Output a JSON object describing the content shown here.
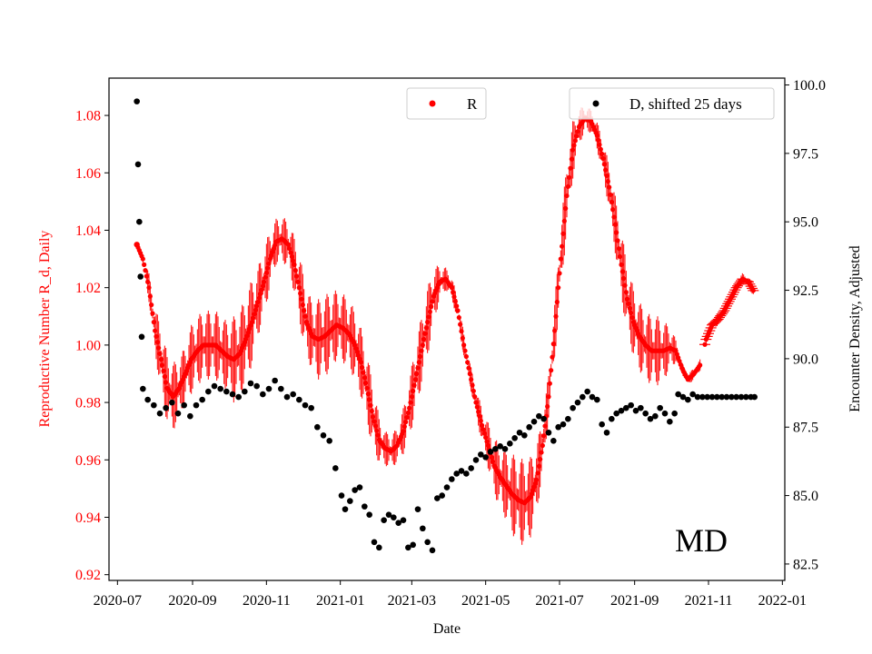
{
  "chart_data": {
    "type": "scatter",
    "title": "",
    "annotation": "MD",
    "xlabel": "Date",
    "ylabel_left": "Reproductive Number R_d, Daily",
    "ylabel_right": "Encounter Density, Adjusted",
    "x_ticks": [
      "2020-07",
      "2020-09",
      "2020-11",
      "2021-01",
      "2021-03",
      "2021-05",
      "2021-07",
      "2021-09",
      "2021-11",
      "2022-01"
    ],
    "x_range": [
      "2020-06-24",
      "2022-01-03"
    ],
    "ylim_left": [
      0.918,
      1.093
    ],
    "ylim_right": [
      81.9,
      100.25
    ],
    "y_ticks_left": [
      "0.92",
      "0.94",
      "0.96",
      "0.98",
      "1.00",
      "1.02",
      "1.04",
      "1.06",
      "1.08"
    ],
    "y_ticks_right": [
      "82.5",
      "85.0",
      "87.5",
      "90.0",
      "92.5",
      "95.0",
      "97.5",
      "100.0"
    ],
    "left_axis_color": "#ff0000",
    "legend_r": "R",
    "legend_d": "D, shifted 25 days",
    "series": [
      {
        "name": "R",
        "color": "#ff0000",
        "axis": "left",
        "points": [
          [
            "2020-07-17",
            1.035,
            0.0
          ],
          [
            "2020-07-22",
            1.03,
            0.002
          ],
          [
            "2020-07-27",
            1.02,
            0.005
          ],
          [
            "2020-08-01",
            1.005,
            0.008
          ],
          [
            "2020-08-06",
            0.995,
            0.012
          ],
          [
            "2020-08-11",
            0.985,
            0.012
          ],
          [
            "2020-08-16",
            0.982,
            0.012
          ],
          [
            "2020-08-21",
            0.985,
            0.01
          ],
          [
            "2020-08-26",
            0.99,
            0.01
          ],
          [
            "2020-08-31",
            0.995,
            0.012
          ],
          [
            "2020-09-05",
            0.998,
            0.012
          ],
          [
            "2020-09-10",
            1.0,
            0.012
          ],
          [
            "2020-09-15",
            1.0,
            0.012
          ],
          [
            "2020-09-20",
            1.0,
            0.012
          ],
          [
            "2020-09-25",
            0.998,
            0.012
          ],
          [
            "2020-09-30",
            0.996,
            0.012
          ],
          [
            "2020-10-05",
            0.995,
            0.015
          ],
          [
            "2020-10-10",
            0.997,
            0.015
          ],
          [
            "2020-10-15",
            1.002,
            0.015
          ],
          [
            "2020-10-20",
            1.008,
            0.015
          ],
          [
            "2020-10-25",
            1.015,
            0.012
          ],
          [
            "2020-10-30",
            1.022,
            0.012
          ],
          [
            "2020-11-04",
            1.03,
            0.01
          ],
          [
            "2020-11-09",
            1.036,
            0.008
          ],
          [
            "2020-11-14",
            1.037,
            0.008
          ],
          [
            "2020-11-19",
            1.035,
            0.008
          ],
          [
            "2020-11-24",
            1.028,
            0.01
          ],
          [
            "2020-11-29",
            1.018,
            0.012
          ],
          [
            "2020-12-04",
            1.008,
            0.012
          ],
          [
            "2020-12-09",
            1.003,
            0.012
          ],
          [
            "2020-12-14",
            1.002,
            0.014
          ],
          [
            "2020-12-19",
            1.003,
            0.014
          ],
          [
            "2020-12-24",
            1.005,
            0.014
          ],
          [
            "2020-12-29",
            1.007,
            0.012
          ],
          [
            "2021-01-03",
            1.006,
            0.012
          ],
          [
            "2021-01-08",
            1.004,
            0.012
          ],
          [
            "2021-01-13",
            1.0,
            0.012
          ],
          [
            "2021-01-18",
            0.994,
            0.012
          ],
          [
            "2021-01-23",
            0.985,
            0.012
          ],
          [
            "2021-01-28",
            0.975,
            0.012
          ],
          [
            "2021-02-02",
            0.967,
            0.008
          ],
          [
            "2021-02-07",
            0.964,
            0.006
          ],
          [
            "2021-02-12",
            0.963,
            0.006
          ],
          [
            "2021-02-17",
            0.965,
            0.006
          ],
          [
            "2021-02-22",
            0.97,
            0.008
          ],
          [
            "2021-02-27",
            0.978,
            0.01
          ],
          [
            "2021-03-04",
            0.988,
            0.012
          ],
          [
            "2021-03-09",
            0.998,
            0.012
          ],
          [
            "2021-03-14",
            1.008,
            0.012
          ],
          [
            "2021-03-19",
            1.017,
            0.01
          ],
          [
            "2021-03-24",
            1.022,
            0.006
          ],
          [
            "2021-03-29",
            1.023,
            0.004
          ],
          [
            "2021-04-03",
            1.02,
            0.004
          ],
          [
            "2021-04-08",
            1.012,
            0.004
          ],
          [
            "2021-04-13",
            1.0,
            0.004
          ],
          [
            "2021-04-18",
            0.99,
            0.004
          ],
          [
            "2021-04-23",
            0.98,
            0.005
          ],
          [
            "2021-04-28",
            0.972,
            0.006
          ],
          [
            "2021-05-03",
            0.965,
            0.008
          ],
          [
            "2021-05-08",
            0.958,
            0.01
          ],
          [
            "2021-05-13",
            0.954,
            0.011
          ],
          [
            "2021-05-18",
            0.951,
            0.012
          ],
          [
            "2021-05-23",
            0.948,
            0.014
          ],
          [
            "2021-05-28",
            0.946,
            0.015
          ],
          [
            "2021-06-02",
            0.945,
            0.015
          ],
          [
            "2021-06-07",
            0.947,
            0.014
          ],
          [
            "2021-06-12",
            0.953,
            0.012
          ],
          [
            "2021-06-17",
            0.965,
            0.01
          ],
          [
            "2021-06-22",
            0.982,
            0.008
          ],
          [
            "2021-06-27",
            1.005,
            0.01
          ],
          [
            "2021-07-02",
            1.03,
            0.012
          ],
          [
            "2021-07-07",
            1.052,
            0.012
          ],
          [
            "2021-07-12",
            1.068,
            0.01
          ],
          [
            "2021-07-17",
            1.076,
            0.006
          ],
          [
            "2021-07-22",
            1.079,
            0.005
          ],
          [
            "2021-07-27",
            1.078,
            0.004
          ],
          [
            "2021-08-01",
            1.073,
            0.005
          ],
          [
            "2021-08-06",
            1.065,
            0.006
          ],
          [
            "2021-08-11",
            1.055,
            0.008
          ],
          [
            "2021-08-16",
            1.042,
            0.01
          ],
          [
            "2021-08-21",
            1.028,
            0.012
          ],
          [
            "2021-08-26",
            1.016,
            0.012
          ],
          [
            "2021-08-31",
            1.008,
            0.012
          ],
          [
            "2021-09-05",
            1.003,
            0.012
          ],
          [
            "2021-09-10",
            1.0,
            0.012
          ],
          [
            "2021-09-15",
            0.998,
            0.012
          ],
          [
            "2021-09-20",
            0.998,
            0.012
          ],
          [
            "2021-09-25",
            0.998,
            0.01
          ],
          [
            "2021-09-30",
            0.999,
            0.008
          ],
          [
            "2021-10-05",
            0.998,
            0.004
          ],
          [
            "2021-10-10",
            0.992,
            0.002
          ],
          [
            "2021-10-15",
            0.988,
            0.002
          ],
          [
            "2021-10-20",
            0.99,
            0.002
          ],
          [
            "2021-10-25",
            0.993,
            0.002
          ],
          [
            "2021-10-30",
            1.002,
            0.002
          ],
          [
            "2021-11-04",
            1.007,
            0.002
          ],
          [
            "2021-11-09",
            1.009,
            0.002
          ],
          [
            "2021-11-14",
            1.012,
            0.002
          ],
          [
            "2021-11-19",
            1.016,
            0.002
          ],
          [
            "2021-11-24",
            1.02,
            0.002
          ],
          [
            "2021-11-29",
            1.023,
            0.002
          ],
          [
            "2021-12-04",
            1.022,
            0.002
          ],
          [
            "2021-12-08",
            1.019,
            0.002
          ]
        ]
      },
      {
        "name": "D, shifted 25 days",
        "color": "#000000",
        "axis": "right",
        "points": [
          [
            "2020-07-17",
            99.4
          ],
          [
            "2020-07-18",
            97.1
          ],
          [
            "2020-07-19",
            95.0
          ],
          [
            "2020-07-20",
            93.0
          ],
          [
            "2020-07-21",
            90.8
          ],
          [
            "2020-07-22",
            88.9
          ],
          [
            "2020-07-26",
            88.5
          ],
          [
            "2020-07-31",
            88.3
          ],
          [
            "2020-08-05",
            88.0
          ],
          [
            "2020-08-10",
            88.2
          ],
          [
            "2020-08-15",
            88.4
          ],
          [
            "2020-08-20",
            88.0
          ],
          [
            "2020-08-25",
            88.3
          ],
          [
            "2020-08-30",
            87.9
          ],
          [
            "2020-09-04",
            88.3
          ],
          [
            "2020-09-09",
            88.5
          ],
          [
            "2020-09-14",
            88.8
          ],
          [
            "2020-09-19",
            89.0
          ],
          [
            "2020-09-24",
            88.9
          ],
          [
            "2020-09-29",
            88.8
          ],
          [
            "2020-10-04",
            88.7
          ],
          [
            "2020-10-09",
            88.6
          ],
          [
            "2020-10-14",
            88.8
          ],
          [
            "2020-10-19",
            89.1
          ],
          [
            "2020-10-24",
            89.0
          ],
          [
            "2020-10-29",
            88.7
          ],
          [
            "2020-11-03",
            88.9
          ],
          [
            "2020-11-08",
            89.2
          ],
          [
            "2020-11-13",
            88.9
          ],
          [
            "2020-11-18",
            88.6
          ],
          [
            "2020-11-23",
            88.7
          ],
          [
            "2020-11-28",
            88.5
          ],
          [
            "2020-12-03",
            88.3
          ],
          [
            "2020-12-08",
            88.2
          ],
          [
            "2020-12-13",
            87.5
          ],
          [
            "2020-12-18",
            87.2
          ],
          [
            "2020-12-23",
            87.0
          ],
          [
            "2020-12-28",
            86.0
          ],
          [
            "2021-01-02",
            85.0
          ],
          [
            "2021-01-05",
            84.5
          ],
          [
            "2021-01-09",
            84.8
          ],
          [
            "2021-01-13",
            85.2
          ],
          [
            "2021-01-17",
            85.3
          ],
          [
            "2021-01-21",
            84.6
          ],
          [
            "2021-01-25",
            84.3
          ],
          [
            "2021-01-29",
            83.3
          ],
          [
            "2021-02-02",
            83.1
          ],
          [
            "2021-02-06",
            84.1
          ],
          [
            "2021-02-10",
            84.3
          ],
          [
            "2021-02-14",
            84.2
          ],
          [
            "2021-02-18",
            84.0
          ],
          [
            "2021-02-22",
            84.1
          ],
          [
            "2021-02-26",
            83.1
          ],
          [
            "2021-03-02",
            83.2
          ],
          [
            "2021-03-06",
            84.5
          ],
          [
            "2021-03-10",
            83.8
          ],
          [
            "2021-03-14",
            83.3
          ],
          [
            "2021-03-18",
            83.0
          ],
          [
            "2021-03-22",
            84.9
          ],
          [
            "2021-03-26",
            85.0
          ],
          [
            "2021-03-30",
            85.3
          ],
          [
            "2021-04-03",
            85.6
          ],
          [
            "2021-04-07",
            85.8
          ],
          [
            "2021-04-11",
            85.9
          ],
          [
            "2021-04-15",
            85.8
          ],
          [
            "2021-04-19",
            86.0
          ],
          [
            "2021-04-23",
            86.3
          ],
          [
            "2021-04-27",
            86.5
          ],
          [
            "2021-05-01",
            86.4
          ],
          [
            "2021-05-05",
            86.6
          ],
          [
            "2021-05-09",
            86.7
          ],
          [
            "2021-05-13",
            86.8
          ],
          [
            "2021-05-17",
            86.7
          ],
          [
            "2021-05-21",
            86.9
          ],
          [
            "2021-05-25",
            87.1
          ],
          [
            "2021-05-29",
            87.3
          ],
          [
            "2021-06-02",
            87.2
          ],
          [
            "2021-06-06",
            87.5
          ],
          [
            "2021-06-10",
            87.7
          ],
          [
            "2021-06-14",
            87.9
          ],
          [
            "2021-06-18",
            87.8
          ],
          [
            "2021-06-22",
            87.3
          ],
          [
            "2021-06-26",
            87.0
          ],
          [
            "2021-06-30",
            87.5
          ],
          [
            "2021-07-04",
            87.6
          ],
          [
            "2021-07-08",
            87.8
          ],
          [
            "2021-07-12",
            88.2
          ],
          [
            "2021-07-16",
            88.4
          ],
          [
            "2021-07-20",
            88.6
          ],
          [
            "2021-07-24",
            88.8
          ],
          [
            "2021-07-28",
            88.6
          ],
          [
            "2021-08-01",
            88.5
          ],
          [
            "2021-08-05",
            87.6
          ],
          [
            "2021-08-09",
            87.3
          ],
          [
            "2021-08-13",
            87.8
          ],
          [
            "2021-08-17",
            88.0
          ],
          [
            "2021-08-21",
            88.1
          ],
          [
            "2021-08-25",
            88.2
          ],
          [
            "2021-08-29",
            88.3
          ],
          [
            "2021-09-02",
            88.1
          ],
          [
            "2021-09-06",
            88.2
          ],
          [
            "2021-09-10",
            88.0
          ],
          [
            "2021-09-14",
            87.8
          ],
          [
            "2021-09-18",
            87.9
          ],
          [
            "2021-09-22",
            88.2
          ],
          [
            "2021-09-26",
            88.0
          ],
          [
            "2021-09-30",
            87.7
          ],
          [
            "2021-10-04",
            88.0
          ],
          [
            "2021-10-07",
            88.7
          ],
          [
            "2021-10-11",
            88.6
          ],
          [
            "2021-10-15",
            88.5
          ],
          [
            "2021-10-19",
            88.7
          ],
          [
            "2021-10-23",
            88.6
          ],
          [
            "2021-10-27",
            88.6
          ],
          [
            "2021-10-31",
            88.6
          ],
          [
            "2021-11-04",
            88.6
          ],
          [
            "2021-11-08",
            88.6
          ],
          [
            "2021-11-12",
            88.6
          ],
          [
            "2021-11-16",
            88.6
          ],
          [
            "2021-11-20",
            88.6
          ],
          [
            "2021-11-24",
            88.6
          ],
          [
            "2021-11-28",
            88.6
          ],
          [
            "2021-12-02",
            88.6
          ],
          [
            "2021-12-06",
            88.6
          ],
          [
            "2021-12-09",
            88.6
          ]
        ]
      }
    ]
  }
}
